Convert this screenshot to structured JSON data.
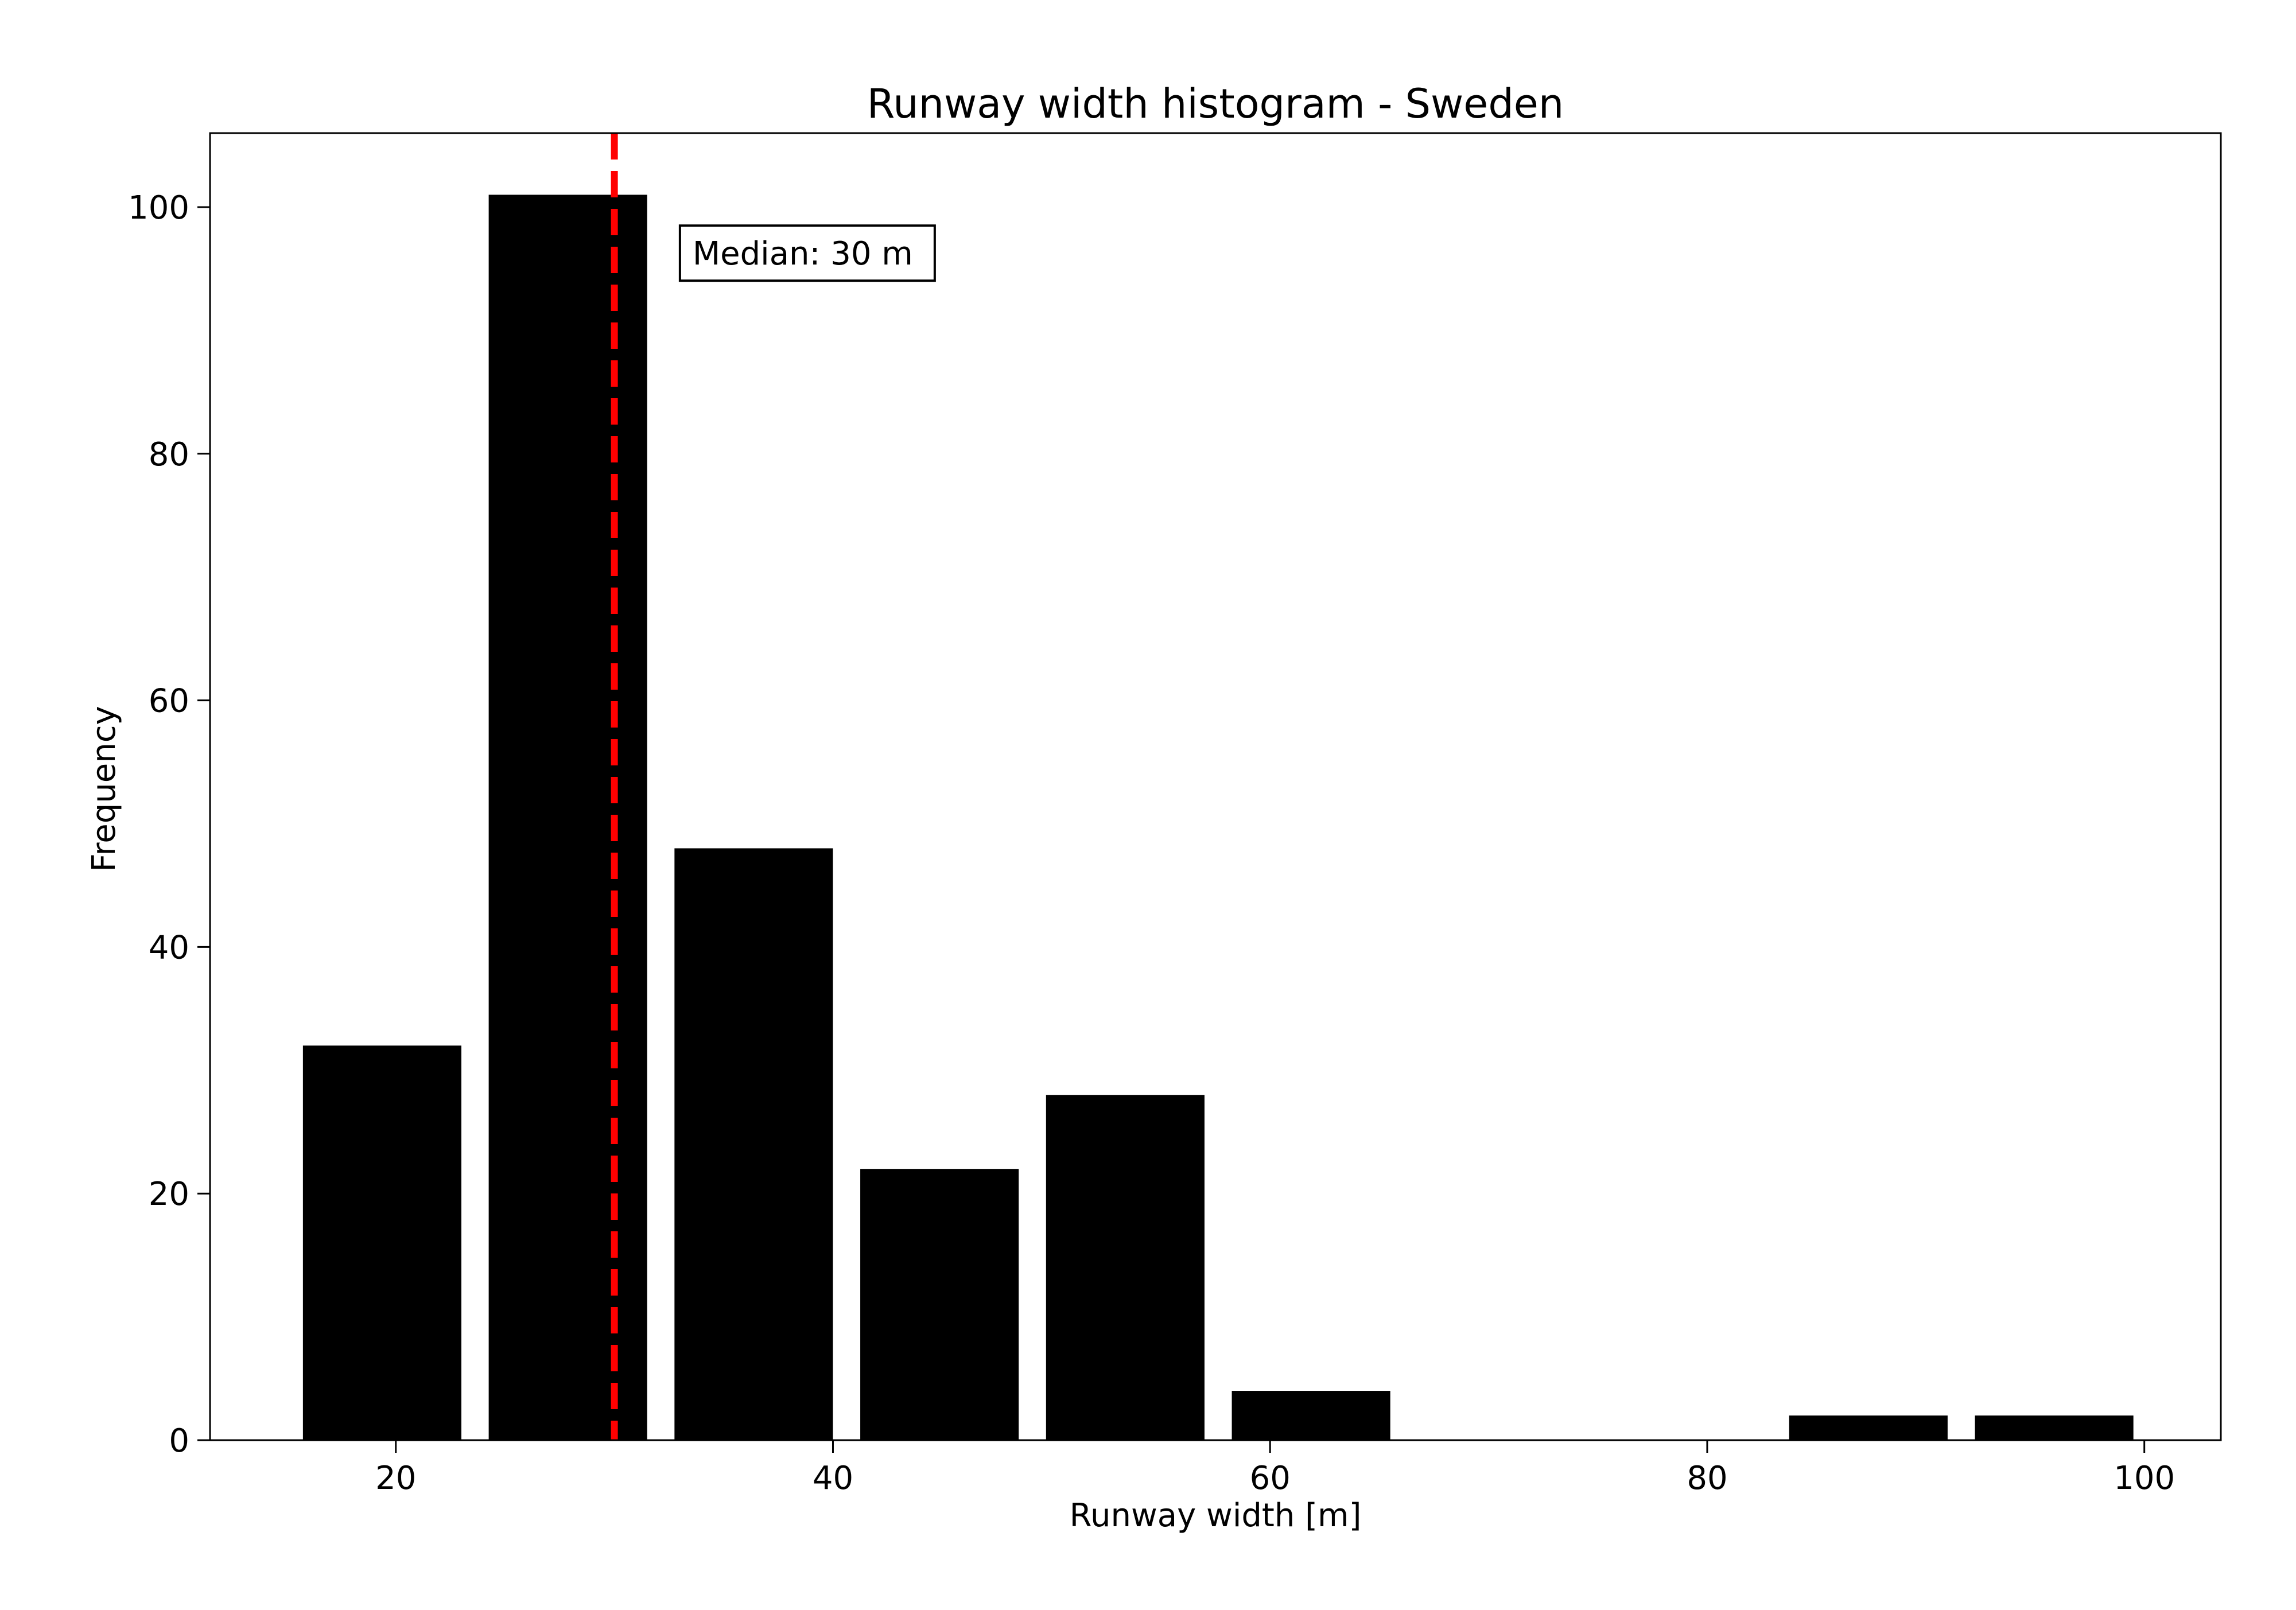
{
  "chart_data": {
    "type": "bar",
    "title": "Runway width histogram - Sweden",
    "xlabel": "Runway width [m]",
    "ylabel": "Frequency",
    "xlim": [
      11.5,
      103.5
    ],
    "ylim": [
      0,
      106
    ],
    "xticks": [
      20,
      40,
      60,
      80,
      100
    ],
    "yticks": [
      0,
      20,
      40,
      60,
      80,
      100
    ],
    "bins": [
      {
        "start": 15.75,
        "end": 23.0,
        "value": 32
      },
      {
        "start": 24.25,
        "end": 31.5,
        "value": 101
      },
      {
        "start": 32.75,
        "end": 40.0,
        "value": 48
      },
      {
        "start": 41.25,
        "end": 48.5,
        "value": 22
      },
      {
        "start": 49.75,
        "end": 57.0,
        "value": 28
      },
      {
        "start": 58.25,
        "end": 65.5,
        "value": 4
      },
      {
        "start": 83.75,
        "end": 91.0,
        "value": 2
      },
      {
        "start": 92.25,
        "end": 99.5,
        "value": 2
      }
    ],
    "bar_color": "#000000",
    "median": {
      "value": 30,
      "label": "Median: 30 m",
      "color": "#ff0000",
      "style": "dashed"
    },
    "grid": false,
    "legend": "none"
  }
}
